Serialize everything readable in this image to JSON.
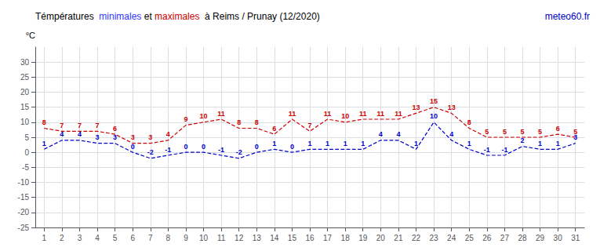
{
  "chart_data": {
    "type": "line",
    "title": "Témpératures  minimales et maximales  à Reims / Prunay (12/2020)",
    "title_segments": [
      {
        "text": "Témpératures  ",
        "color": "black"
      },
      {
        "text": "minimales",
        "color": "#3333ff"
      },
      {
        "text": " et ",
        "color": "black"
      },
      {
        "text": "maximales",
        "color": "#cc0000"
      },
      {
        "text": "  à Reims / Prunay (12/2020)",
        "color": "black"
      }
    ],
    "annotations": [
      {
        "text": "meteo60.fr",
        "color": "#0000cc"
      }
    ],
    "ylabel": "°C",
    "x": [
      1,
      2,
      3,
      4,
      5,
      6,
      7,
      8,
      9,
      10,
      11,
      12,
      13,
      14,
      15,
      16,
      17,
      18,
      19,
      20,
      21,
      22,
      23,
      24,
      25,
      26,
      27,
      28,
      29,
      30,
      31
    ],
    "series": [
      {
        "color": "#0000cc",
        "line_style": "dashed",
        "marker": "none",
        "values": [
          1,
          4,
          4,
          3,
          3,
          0,
          -2,
          -1,
          0,
          0,
          -1,
          -2,
          0,
          1,
          0,
          1,
          1,
          1,
          1,
          4,
          4,
          1,
          10,
          4,
          1,
          -1,
          -1,
          2,
          1,
          1,
          3
        ]
      },
      {
        "color": "#cc0000",
        "line_style": "dashed",
        "marker": "none",
        "values": [
          8,
          7,
          7,
          7,
          6,
          3,
          3,
          4,
          9,
          10,
          11,
          8,
          8,
          6,
          11,
          7,
          11,
          10,
          11,
          11,
          11,
          13,
          15,
          13,
          8,
          5,
          5,
          5,
          5,
          6,
          5
        ]
      }
    ],
    "xlim": [
      0.5,
      31.5
    ],
    "xticks": [
      1,
      2,
      3,
      4,
      5,
      6,
      7,
      8,
      9,
      10,
      11,
      12,
      13,
      14,
      15,
      16,
      17,
      18,
      19,
      20,
      21,
      22,
      23,
      24,
      25,
      26,
      27,
      28,
      29,
      30,
      31
    ],
    "ylim": [
      -25,
      35
    ],
    "yticks": [
      -25,
      -20,
      -15,
      -10,
      -5,
      0,
      5,
      10,
      15,
      20,
      25,
      30
    ],
    "grid": true,
    "data_labels": true
  }
}
